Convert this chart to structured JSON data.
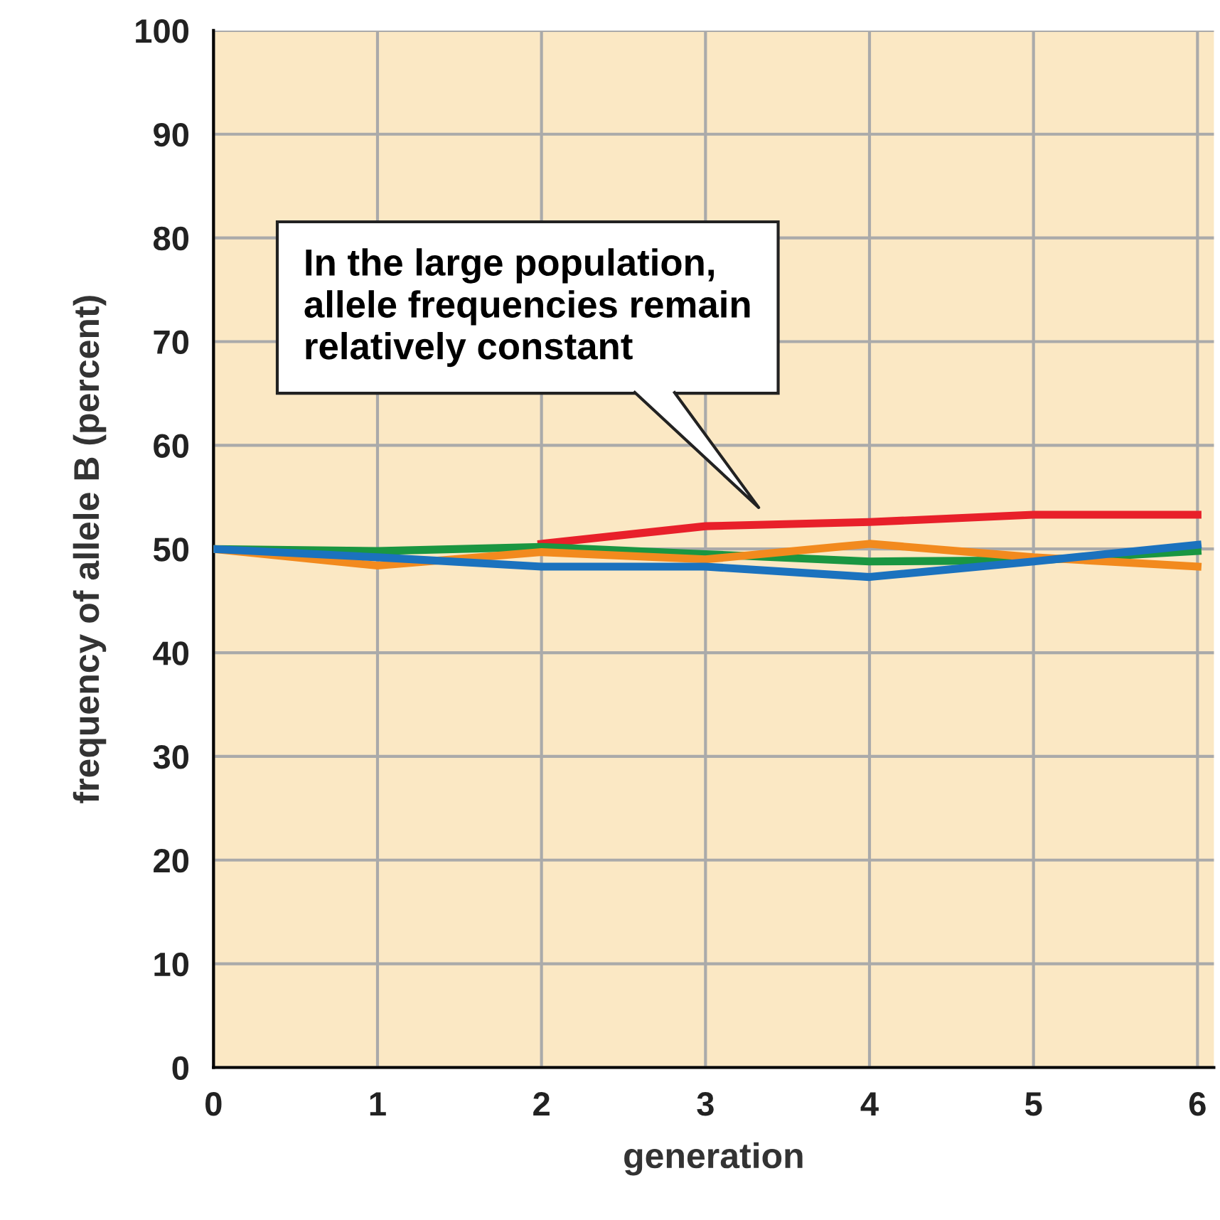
{
  "chart_data": {
    "type": "line",
    "xlabel": "generation",
    "ylabel": "frequency of allele B (percent)",
    "x": [
      0,
      1,
      2,
      3,
      4,
      5,
      6
    ],
    "series": [
      {
        "color": "#e8202a",
        "values": [
          null,
          null,
          50.5,
          52.2,
          52.6,
          53.3,
          53.3
        ]
      },
      {
        "color": "#1a9641",
        "values": [
          50,
          49.8,
          50.2,
          49.5,
          48.8,
          48.9,
          49.8
        ]
      },
      {
        "color": "#f28a1e",
        "values": [
          50,
          48.4,
          49.7,
          49.0,
          50.5,
          49.2,
          48.3
        ]
      },
      {
        "color": "#1b72be",
        "values": [
          50,
          49.2,
          48.3,
          48.3,
          47.3,
          48.8,
          50.4
        ]
      }
    ],
    "xlim": [
      0,
      6.1
    ],
    "ylim": [
      0,
      100
    ],
    "xticks": [
      0,
      1,
      2,
      3,
      4,
      5,
      6
    ],
    "yticks": [
      0,
      10,
      20,
      30,
      40,
      50,
      60,
      70,
      80,
      90,
      100
    ],
    "grid": true,
    "marker": "none",
    "line_style": "solid",
    "annotations": [
      "In the large population,\nallele frequencies remain\nrelatively constant"
    ]
  }
}
